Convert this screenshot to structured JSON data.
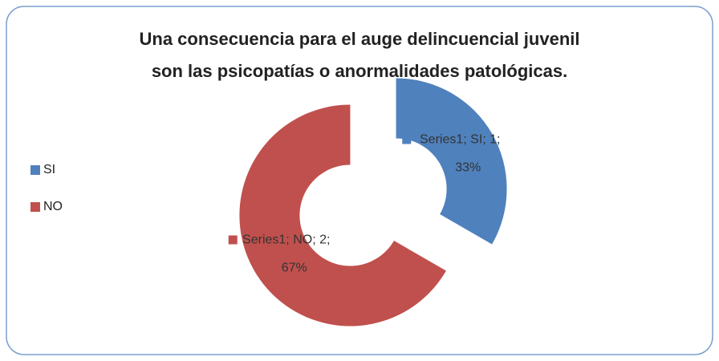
{
  "chart_data": {
    "type": "doughnut",
    "title": [
      "Una consecuencia para el auge delincuencial juvenil",
      "son las psicopatías o anormalidades patológicas."
    ],
    "categories": [
      "SI",
      "NO"
    ],
    "values": [
      1,
      2
    ],
    "colors": [
      "#4f81bd",
      "#c0504d"
    ],
    "data_labels": [
      [
        "Series1; SI; 1;",
        "33%"
      ],
      [
        "Series1; NO; 2;",
        "67%"
      ]
    ],
    "legend": "left"
  }
}
